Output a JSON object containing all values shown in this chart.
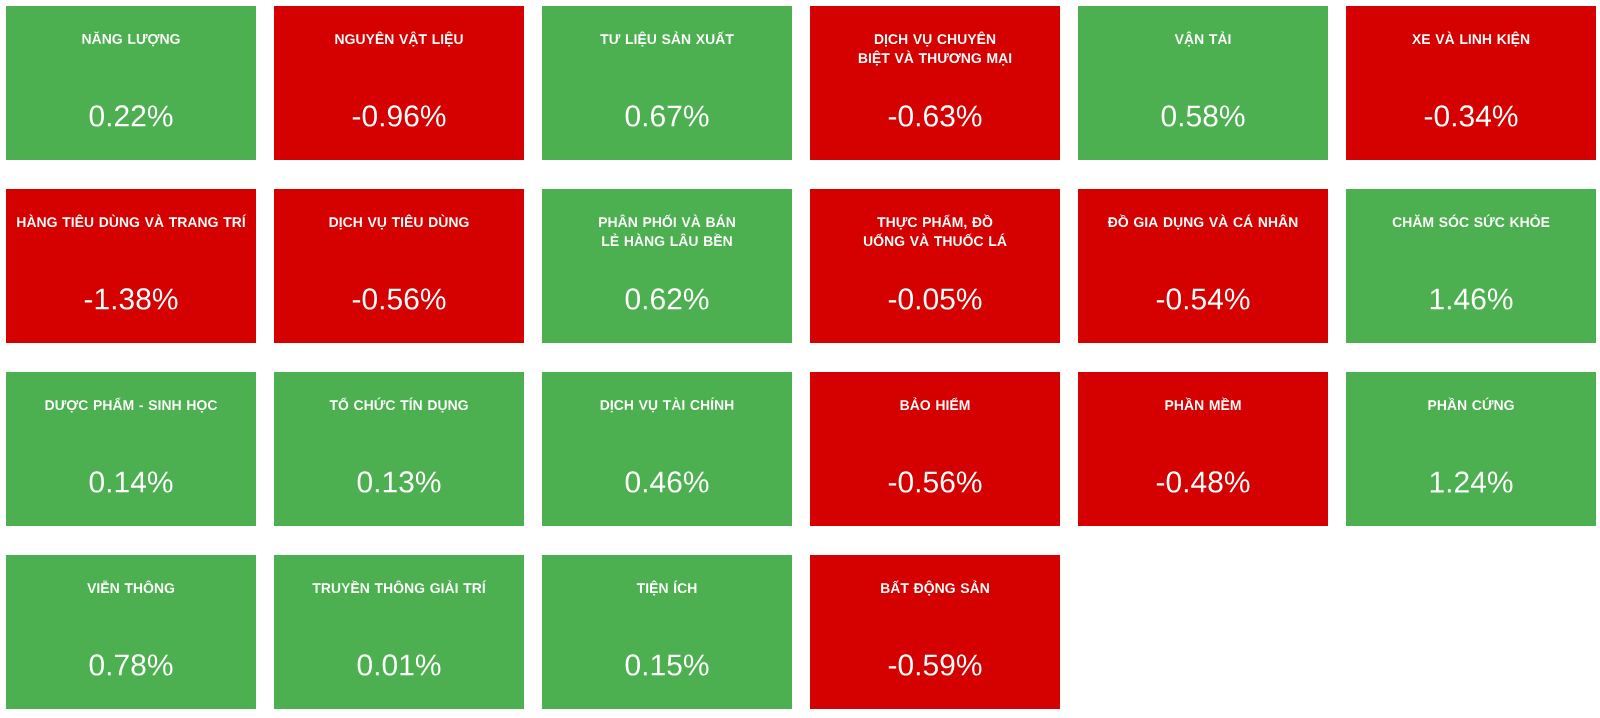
{
  "chart_data": {
    "type": "other",
    "categories": [
      "NĂNG LƯỢNG",
      "NGUYÊN VẬT LIỆU",
      "TƯ LIỆU SẢN XUẤT",
      "DỊCH VỤ CHUYÊN BIỆT VÀ THƯƠNG MẠI",
      "VẬN TẢI",
      "XE VÀ LINH KIỆN",
      "HÀNG TIÊU DÙNG VÀ TRANG TRÍ",
      "DỊCH VỤ TIÊU DÙNG",
      "PHÂN PHỐI VÀ BÁN LẺ HÀNG LÂU BỀN",
      "THỰC PHẨM, ĐỒ UỐNG VÀ THUỐC LÁ",
      "ĐỒ GIA DỤNG VÀ CÁ NHÂN",
      "CHĂM SÓC SỨC KHỎE",
      "DƯỢC PHẨM - SINH HỌC",
      "TỔ CHỨC TÍN DỤNG",
      "DỊCH VỤ TÀI CHÍNH",
      "BẢO HIỂM",
      "PHẦN MỀM",
      "PHẦN CỨNG",
      "VIỄN THÔNG",
      "TRUYỀN THÔNG GIẢI TRÍ",
      "TIỆN ÍCH",
      "BẤT ĐỘNG SẢN"
    ],
    "values": [
      0.22,
      -0.96,
      0.67,
      -0.63,
      0.58,
      -0.34,
      -1.38,
      -0.56,
      0.62,
      -0.05,
      -0.54,
      1.46,
      0.14,
      0.13,
      0.46,
      -0.56,
      -0.48,
      1.24,
      0.78,
      0.01,
      0.15,
      -0.59
    ],
    "value_labels": [
      "0.22%",
      "-0.96%",
      "0.67%",
      "-0.63%",
      "0.58%",
      "-0.34%",
      "-1.38%",
      "-0.56%",
      "0.62%",
      "-0.05%",
      "-0.54%",
      "1.46%",
      "0.14%",
      "0.13%",
      "0.46%",
      "-0.56%",
      "-0.48%",
      "1.24%",
      "0.78%",
      "0.01%",
      "0.15%",
      "-0.59%"
    ],
    "colors": [
      "#4caf50",
      "#d50000",
      "#4caf50",
      "#d50000",
      "#4caf50",
      "#d50000",
      "#d50000",
      "#d50000",
      "#4caf50",
      "#d50000",
      "#d50000",
      "#4caf50",
      "#4caf50",
      "#4caf50",
      "#4caf50",
      "#d50000",
      "#d50000",
      "#4caf50",
      "#4caf50",
      "#4caf50",
      "#4caf50",
      "#d50000"
    ]
  }
}
